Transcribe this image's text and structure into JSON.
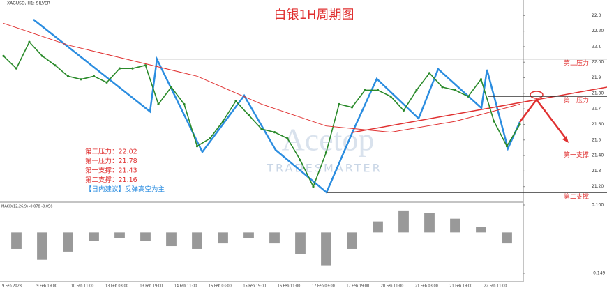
{
  "chart_data": {
    "type": "line",
    "title": "白银1H周期图",
    "header": "XAGUSD, H1: SILVER",
    "watermark": [
      "Acetop",
      "TRADESMARTER"
    ],
    "advice": "【日内建议】反弹高空为主",
    "levels": [
      {
        "name": "第二压力",
        "value": 22.02,
        "label": "第二压力：22.02"
      },
      {
        "name": "第一压力",
        "value": 21.78,
        "label": "第一压力：21.78"
      },
      {
        "name": "第一支撑",
        "value": 21.43,
        "label": "第一支撑：21.43"
      },
      {
        "name": "第二支撑",
        "value": 21.16,
        "label": "第二支撑：21.16"
      }
    ],
    "series": [
      {
        "color": "#2a8a2a",
        "values": [
          22.04,
          21.96,
          22.13,
          22.04,
          21.98,
          21.91,
          21.89,
          21.91,
          21.87,
          21.96,
          21.96,
          21.98,
          21.73,
          21.84,
          21.73,
          21.46,
          21.51,
          21.62,
          21.75,
          21.66,
          21.57,
          21.55,
          21.51,
          21.37,
          21.2,
          21.42,
          21.73,
          21.71,
          21.82,
          21.82,
          21.78,
          21.69,
          21.82,
          21.93,
          21.84,
          21.82,
          21.78,
          21.89,
          21.62,
          21.46,
          21.6
        ]
      },
      {
        "color": "#e03030",
        "values": [
          22.25,
          22.11,
          22.01,
          21.91,
          21.73,
          21.59,
          21.55,
          21.62,
          21.73
        ]
      }
    ],
    "ylim": [
      21.1,
      22.4
    ],
    "yticks": [
      {
        "value": 21.2,
        "label": "21.20"
      },
      21.3,
      {
        "value": 21.4,
        "label": "21.40"
      },
      21.5,
      {
        "value": 21.6,
        "label": "21.60"
      },
      21.7,
      {
        "value": 21.8,
        "label": "21.80"
      },
      21.9,
      {
        "value": 22.0,
        "label": "22.00"
      },
      22.1,
      {
        "value": 22.2,
        "label": "22.20"
      },
      22.3
    ],
    "xlabels": [
      "9 Feb 2023",
      "9 Feb 19:00",
      "10 Feb 11:00",
      "13 Feb 03:00",
      "13 Feb 19:00",
      "14 Feb 11:00",
      "15 Feb 03:00",
      "15 Feb 19:00",
      "16 Feb 11:00",
      "17 Feb 03:00",
      "17 Feb 19:00",
      "20 Feb 11:00",
      "21 Feb 03:00",
      "21 Feb 19:00",
      "22 Feb 11:00"
    ],
    "macd": {
      "label": "MACD(12,26,9) -0.078 -0.056",
      "color": "#999999",
      "values": [
        -0.06,
        -0.1,
        -0.07,
        -0.03,
        -0.02,
        -0.03,
        -0.05,
        -0.06,
        -0.04,
        -0.02,
        -0.04,
        -0.08,
        -0.12,
        -0.06,
        0.04,
        0.08,
        0.07,
        0.05,
        0.02,
        -0.04
      ],
      "ylim": [
        -0.149,
        0.1
      ],
      "yticks": [
        {
          "value": 0.1,
          "label": "0.100"
        },
        {
          "value": -0.149,
          "label": "-0.149"
        }
      ]
    }
  }
}
